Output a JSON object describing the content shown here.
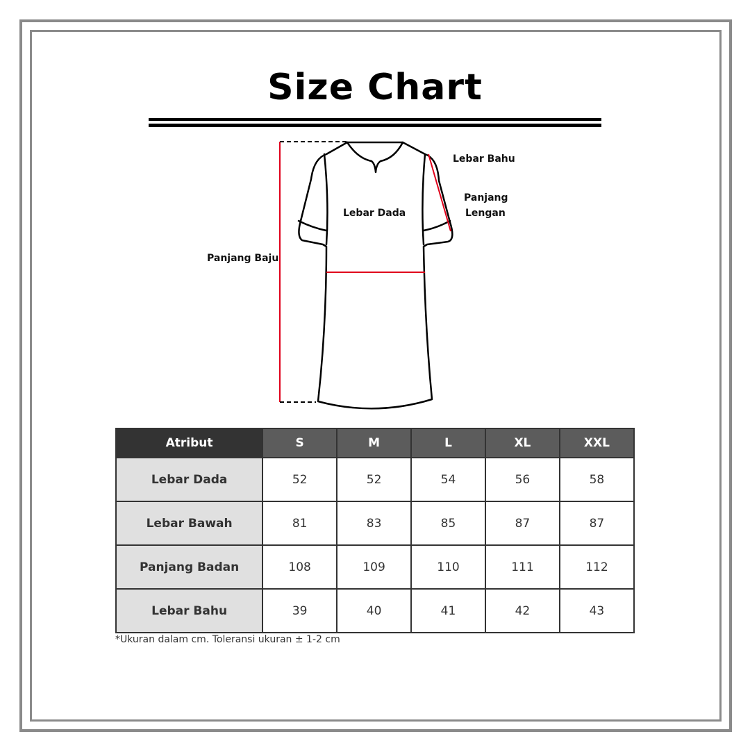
{
  "title": "Size Chart",
  "diagram_labels": {
    "shoulder": "Lebar Bahu",
    "sleeve_line1": "Panjang",
    "sleeve_line2": "Lengan",
    "chest": "Lebar Dada",
    "length": "Panjang Baju"
  },
  "colors": {
    "measure_line": "#e0001b",
    "header_attr": "#333333",
    "header_size": "#5c5c5c",
    "attr_cell": "#e0e0e0"
  },
  "table": {
    "headers": [
      "Atribut",
      "S",
      "M",
      "L",
      "XL",
      "XXL"
    ],
    "rows": [
      {
        "label": "Lebar Dada",
        "values": [
          "52",
          "52",
          "54",
          "56",
          "58"
        ]
      },
      {
        "label": "Lebar Bawah",
        "values": [
          "81",
          "83",
          "85",
          "87",
          "87"
        ]
      },
      {
        "label": "Panjang Badan",
        "values": [
          "108",
          "109",
          "110",
          "111",
          "112"
        ]
      },
      {
        "label": "Lebar Bahu",
        "values": [
          "39",
          "40",
          "41",
          "42",
          "43"
        ]
      }
    ]
  },
  "note": "*Ukuran dalam cm. Toleransi ukuran ± 1-2 cm"
}
